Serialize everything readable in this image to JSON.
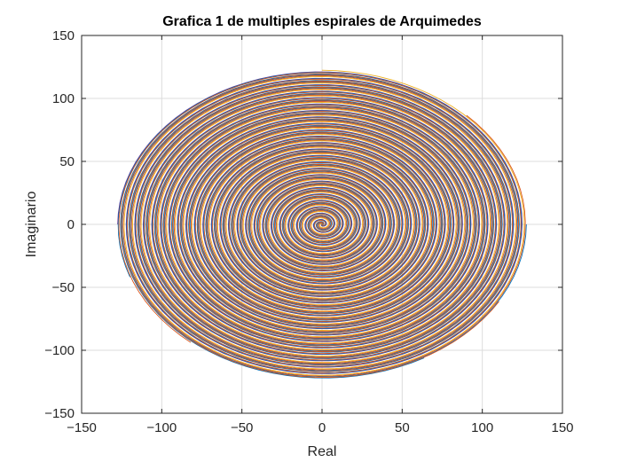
{
  "chart_data": {
    "type": "line",
    "title": "Grafica 1 de multiples espirales de Arquimedes",
    "xlabel": "Real",
    "ylabel": "Imaginario",
    "xlim": [
      -150,
      150
    ],
    "ylim": [
      -150,
      150
    ],
    "xticks": [
      -150,
      -100,
      -50,
      0,
      50,
      100,
      150
    ],
    "yticks": [
      -150,
      -100,
      -50,
      0,
      50,
      100,
      150
    ],
    "grid": true,
    "legend": "none",
    "series": [
      {
        "color": "#0072BD",
        "r_max": 127.5,
        "turns": 24,
        "phase_deg": 0
      },
      {
        "color": "#D95319",
        "r_max": 127.5,
        "turns": 24,
        "phase_deg": 45
      },
      {
        "color": "#EDB120",
        "r_max": 127.5,
        "turns": 24,
        "phase_deg": 90
      },
      {
        "color": "#7E2F8E",
        "r_max": 127.5,
        "turns": 24,
        "phase_deg": 180
      },
      {
        "color": "#0072BD",
        "r_max": 127.5,
        "turns": 24,
        "phase_deg": 200
      },
      {
        "color": "#D95319",
        "r_max": 127.5,
        "turns": 24,
        "phase_deg": 230
      },
      {
        "color": "#0072BD",
        "r_max": 127.5,
        "turns": 24,
        "phase_deg": 300
      },
      {
        "color": "#D95319",
        "r_max": 127.5,
        "turns": 24,
        "phase_deg": 330
      }
    ],
    "y_scale": 0.96,
    "colors": {
      "axis": "#262626",
      "grid": "#dcdcdc",
      "background": "#ffffff"
    }
  }
}
